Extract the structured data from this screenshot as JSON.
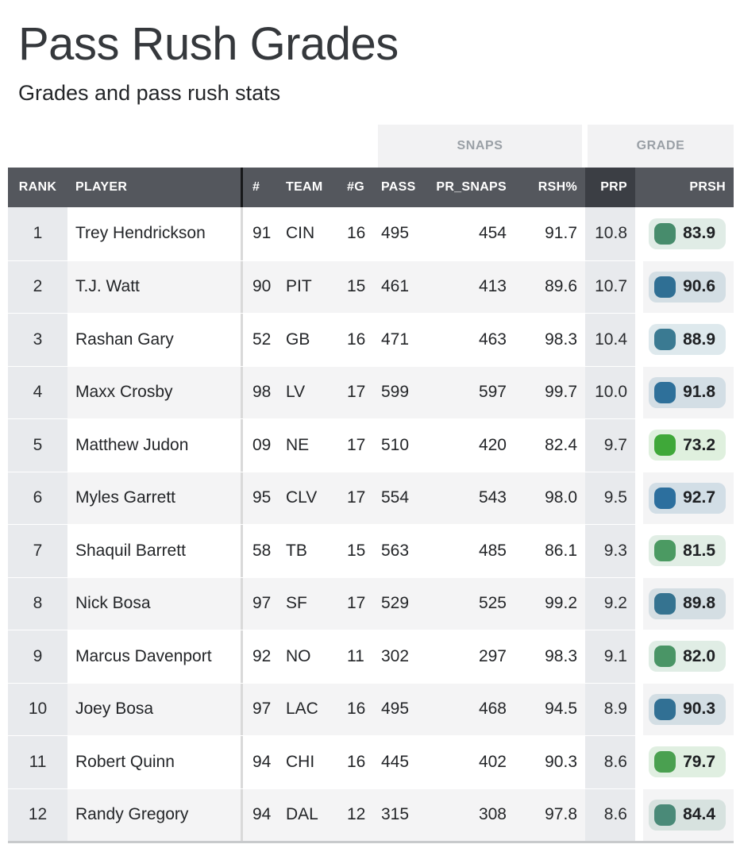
{
  "page": {
    "title": "Pass Rush Grades",
    "subtitle": "Grades and pass rush stats"
  },
  "table": {
    "group_headers": [
      {
        "label": "SNAPS"
      },
      {
        "label": "GRADE"
      }
    ],
    "columns": [
      "RANK",
      "PLAYER",
      "#",
      "TEAM",
      "#G",
      "PASS",
      "PR_SNAPS",
      "RSH%",
      "PRP",
      "PRSH"
    ],
    "sorted_column": "PRP",
    "rows": [
      {
        "rank": "1",
        "player": "Trey Hendrickson",
        "num": "91",
        "team": "CIN",
        "games": "16",
        "pass": "495",
        "pr_snaps": "454",
        "rsh_pct": "91.7",
        "prp": "10.8",
        "prsh": "83.9",
        "badge_color": "#478c6c"
      },
      {
        "rank": "2",
        "player": "T.J. Watt",
        "num": "90",
        "team": "PIT",
        "games": "15",
        "pass": "461",
        "pr_snaps": "413",
        "rsh_pct": "89.6",
        "prp": "10.7",
        "prsh": "90.6",
        "badge_color": "#2f6f94"
      },
      {
        "rank": "3",
        "player": "Rashan Gary",
        "num": "52",
        "team": "GB",
        "games": "16",
        "pass": "471",
        "pr_snaps": "463",
        "rsh_pct": "98.3",
        "prp": "10.4",
        "prsh": "88.9",
        "badge_color": "#3a7a92"
      },
      {
        "rank": "4",
        "player": "Maxx Crosby",
        "num": "98",
        "team": "LV",
        "games": "17",
        "pass": "599",
        "pr_snaps": "597",
        "rsh_pct": "99.7",
        "prp": "10.0",
        "prsh": "91.8",
        "badge_color": "#2e709a"
      },
      {
        "rank": "5",
        "player": "Matthew Judon",
        "num": "09",
        "team": "NE",
        "games": "17",
        "pass": "510",
        "pr_snaps": "420",
        "rsh_pct": "82.4",
        "prp": "9.7",
        "prsh": "73.2",
        "badge_color": "#3fa839"
      },
      {
        "rank": "6",
        "player": "Myles Garrett",
        "num": "95",
        "team": "CLV",
        "games": "17",
        "pass": "554",
        "pr_snaps": "543",
        "rsh_pct": "98.0",
        "prp": "9.5",
        "prsh": "92.7",
        "badge_color": "#2c6f9e"
      },
      {
        "rank": "7",
        "player": "Shaquil Barrett",
        "num": "58",
        "team": "TB",
        "games": "15",
        "pass": "563",
        "pr_snaps": "485",
        "rsh_pct": "86.1",
        "prp": "9.3",
        "prsh": "81.5",
        "badge_color": "#4b9a62"
      },
      {
        "rank": "8",
        "player": "Nick Bosa",
        "num": "97",
        "team": "SF",
        "games": "17",
        "pass": "529",
        "pr_snaps": "525",
        "rsh_pct": "99.2",
        "prp": "9.2",
        "prsh": "89.8",
        "badge_color": "#357390"
      },
      {
        "rank": "9",
        "player": "Marcus Davenport",
        "num": "92",
        "team": "NO",
        "games": "11",
        "pass": "302",
        "pr_snaps": "297",
        "rsh_pct": "98.3",
        "prp": "9.1",
        "prsh": "82.0",
        "badge_color": "#4a9566"
      },
      {
        "rank": "10",
        "player": "Joey Bosa",
        "num": "97",
        "team": "LAC",
        "games": "16",
        "pass": "495",
        "pr_snaps": "468",
        "rsh_pct": "94.5",
        "prp": "8.9",
        "prsh": "90.3",
        "badge_color": "#317094"
      },
      {
        "rank": "11",
        "player": "Robert Quinn",
        "num": "94",
        "team": "CHI",
        "games": "16",
        "pass": "445",
        "pr_snaps": "402",
        "rsh_pct": "90.3",
        "prp": "8.6",
        "prsh": "79.7",
        "badge_color": "#4aa050"
      },
      {
        "rank": "12",
        "player": "Randy Gregory",
        "num": "94",
        "team": "DAL",
        "games": "12",
        "pass": "315",
        "pr_snaps": "308",
        "rsh_pct": "97.8",
        "prp": "8.6",
        "prsh": "84.4",
        "badge_color": "#4a8a78"
      }
    ]
  },
  "colors": {
    "header_bg": "#54575d",
    "header_active_bg": "#3b3e44",
    "header_text": "#ffffff",
    "group_header_bg": "#f2f2f3",
    "group_header_text": "#9aa0a6",
    "rank_prp_column_bg": "#e8eaed",
    "row_stripe_bg": "#f4f4f5",
    "body_divider": "#d9d9d9",
    "header_divider": "#17181a",
    "bottom_border": "#c8cacc"
  }
}
